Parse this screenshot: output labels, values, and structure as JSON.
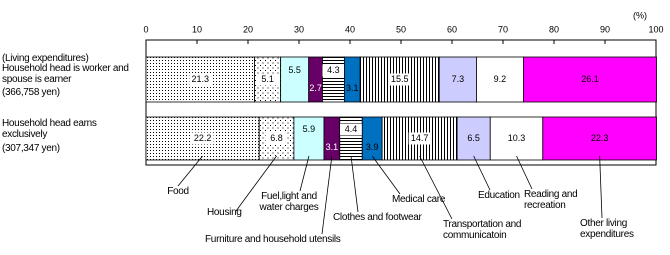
{
  "chart_data": {
    "type": "stacked-bar-horizontal",
    "row_header": "(Living expenditures)",
    "x_unit": "(%)",
    "categories": [
      "Household head is worker and spouse is earner",
      "Household head earns exclusively"
    ],
    "category_amounts": [
      "(366,758 yen)",
      "(307,347 yen)"
    ],
    "xlim": [
      0,
      100
    ],
    "xticks": [
      0,
      10,
      20,
      30,
      40,
      50,
      60,
      70,
      80,
      90,
      100
    ],
    "series": [
      {
        "name": "Food",
        "color": "#000000",
        "pattern": "dots",
        "values": [
          21.3,
          22.2
        ]
      },
      {
        "name": "Housing",
        "color": "#000000",
        "pattern": "sparse-dots",
        "values": [
          5.1,
          6.8
        ]
      },
      {
        "name": "Fuel,light and water charges",
        "color": "#ccffff",
        "values": [
          5.5,
          5.9
        ]
      },
      {
        "name": "Furniture and household utensils",
        "color": "#660066",
        "values": [
          2.7,
          3.1
        ]
      },
      {
        "name": "Clothes and footwear",
        "color": "#000000",
        "pattern": "hlines",
        "values": [
          4.3,
          4.4
        ]
      },
      {
        "name": "Medical care",
        "color": "#0070c0",
        "values": [
          3.1,
          3.9
        ]
      },
      {
        "name": "Transportation and communicatoin",
        "color": "#000000",
        "pattern": "vlines",
        "values": [
          15.5,
          14.7
        ]
      },
      {
        "name": "Education",
        "color": "#ccccff",
        "values": [
          7.3,
          6.5
        ]
      },
      {
        "name": "Reading and recreation",
        "color": "#ffffff",
        "values": [
          9.2,
          10.3
        ]
      },
      {
        "name": "Other living expenditures",
        "color": "#ff00ff",
        "values": [
          26.1,
          22.3
        ]
      }
    ]
  }
}
